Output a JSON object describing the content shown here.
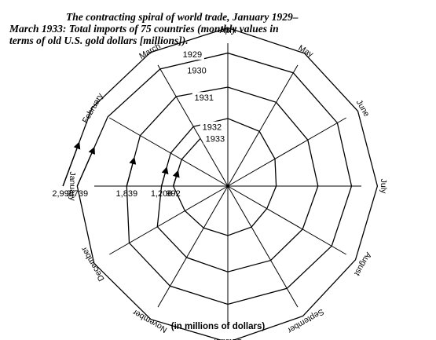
{
  "caption": {
    "line1": "The contracting spiral of world trade, January 1929–",
    "line2": "March 1933: Total imports of 75 countries (monthly values in",
    "line3": "terms of old U.S. gold dollars [millions])."
  },
  "axis_note": "(in millions of dollars)",
  "chart_data": {
    "type": "radar",
    "title": "The contracting spiral of world trade, January 1929–March 1933: Total imports of 75 countries (monthly values in terms of old U.S. gold dollars [millions]).",
    "unit_label": "(in millions of dollars)",
    "months": [
      "January",
      "February",
      "March",
      "April",
      "May",
      "June",
      "July",
      "August",
      "September",
      "October",
      "November",
      "December"
    ],
    "rmax": 3000,
    "grid": false,
    "legend": "none",
    "series": [
      {
        "name": "1929",
        "values": [
          2998,
          2850,
          2810,
          2880,
          2790,
          2730,
          2720,
          2680,
          2730,
          2840,
          2800,
          2810
        ]
      },
      {
        "name": "1930",
        "values": [
          2739,
          2520,
          2460,
          2420,
          2380,
          2300,
          2250,
          2180,
          2150,
          2150,
          2100,
          2070
        ]
      },
      {
        "name": "1931",
        "values": [
          1839,
          1840,
          1880,
          1800,
          1760,
          1680,
          1640,
          1570,
          1560,
          1560,
          1500,
          1480
        ]
      },
      {
        "name": "1932",
        "values": [
          1206,
          1200,
          1250,
          1230,
          1150,
          990,
          880,
          820,
          860,
          900,
          880,
          900
        ]
      },
      {
        "name": "1933",
        "values": [
          992,
          970,
          1000
        ]
      }
    ],
    "value_labels": [
      "2,998",
      "2,739",
      "1,839",
      "1,206",
      "992"
    ]
  }
}
